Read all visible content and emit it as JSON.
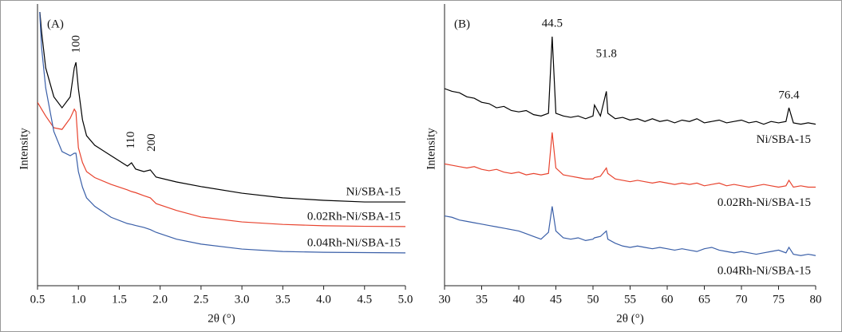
{
  "chart_data": [
    {
      "type": "line",
      "panel_label": "(A)",
      "xlabel": "2θ (°)",
      "ylabel": "Intensity",
      "xlim": [
        0.5,
        5.0
      ],
      "xticks": [
        0.5,
        {
          "value": 1,
          "label": "1.0"
        },
        1.5,
        {
          "value": 2,
          "label": "2.0"
        },
        2.5,
        {
          "value": 3,
          "label": "3.0"
        },
        3.5,
        {
          "value": 4,
          "label": "4.0"
        },
        4.5,
        {
          "value": 5,
          "label": "5.0"
        }
      ],
      "ylim": [
        0,
        100
      ],
      "x": [
        0.5,
        0.55,
        0.6,
        0.7,
        0.8,
        0.9,
        0.95,
        0.97,
        1.0,
        1.05,
        1.1,
        1.2,
        1.4,
        1.6,
        1.65,
        1.7,
        1.8,
        1.88,
        1.95,
        2.2,
        2.5,
        3.0,
        3.5,
        4.0,
        4.5,
        5.0
      ],
      "series": [
        {
          "name": "Ni/SBA-15",
          "color": "#000000",
          "values": [
            110,
            92.7,
            79.6,
            69,
            65,
            69,
            79.6,
            81.6,
            72,
            60.6,
            54.8,
            51.3,
            47.5,
            43.7,
            44.9,
            42.6,
            41.7,
            42.3,
            39.7,
            37.9,
            36.2,
            33.8,
            32.1,
            31.2,
            30.6,
            30.6
          ]
        },
        {
          "name": "0.02Rh-Ni/SBA-15",
          "color": "#e8432e",
          "values": [
            67,
            64.5,
            62,
            57.7,
            57.1,
            61.2,
            64.5,
            63.5,
            50.4,
            45,
            41.7,
            39.5,
            37,
            35,
            34.4,
            34,
            32.9,
            32.1,
            30,
            27.5,
            25.1,
            23.3,
            22.4,
            21.9,
            21.7,
            21.6
          ]
        },
        {
          "name": "0.04Rh-Ni/SBA-15",
          "color": "#3a5fa8",
          "values": [
            115,
            86.9,
            72.3,
            56.3,
            49,
            47.5,
            48.4,
            48.4,
            41.7,
            36,
            32.1,
            29,
            25,
            22.7,
            22.4,
            22,
            21.3,
            20.5,
            19.5,
            17,
            15.2,
            13.4,
            12.5,
            12.2,
            12.1,
            12
          ]
        }
      ],
      "annotation_rotation": -90,
      "annotations": [
        {
          "text": "100",
          "x": 0.98,
          "y": 85
        },
        {
          "text": "110",
          "x": 1.65,
          "y": 50
        },
        {
          "text": "200",
          "x": 1.9,
          "y": 49
        }
      ]
    },
    {
      "type": "line",
      "panel_label": "(B)",
      "xlabel": "2θ (°)",
      "ylabel": "Intensity",
      "xlim": [
        30,
        80
      ],
      "xticks": [
        30,
        35,
        40,
        45,
        50,
        55,
        60,
        65,
        70,
        75,
        80
      ],
      "ylim": [
        0,
        100
      ],
      "x": [
        30,
        31,
        32,
        33,
        34,
        35,
        36,
        37,
        38,
        39,
        40,
        41,
        42,
        43,
        44,
        44.5,
        45,
        46,
        47,
        48,
        49,
        50,
        50.2,
        51,
        51.8,
        52,
        53,
        54,
        55,
        56,
        57,
        58,
        59,
        60,
        61,
        62,
        63,
        64,
        65,
        66,
        67,
        68,
        69,
        70,
        71,
        72,
        73,
        74,
        75,
        76,
        76.4,
        77,
        78,
        79,
        80
      ],
      "series": [
        {
          "name": "Ni/SBA-15",
          "color": "#000000",
          "values": [
            72,
            71,
            70.5,
            69,
            68.5,
            67,
            66.5,
            65,
            65.5,
            64,
            63.5,
            64,
            62.5,
            62,
            63,
            91,
            63,
            62,
            61.5,
            62,
            61,
            62,
            66,
            62,
            71,
            63,
            61,
            61.5,
            60.5,
            61,
            60,
            61,
            60,
            60.5,
            59.5,
            60.5,
            60,
            61,
            59.5,
            60,
            60.5,
            59.5,
            60,
            60.5,
            59.5,
            60,
            59,
            60,
            59.5,
            60,
            65,
            59.5,
            59,
            59.5,
            59
          ]
        },
        {
          "name": "0.02Rh-Ni/SBA-15",
          "color": "#e8432e",
          "values": [
            44.5,
            44,
            43.5,
            43,
            43.5,
            42.5,
            42,
            42.5,
            41.5,
            41,
            41.5,
            40.5,
            41,
            40.5,
            41,
            56,
            43,
            40.5,
            40,
            39.5,
            39,
            39,
            39.5,
            40,
            43,
            41,
            39,
            38.5,
            38,
            38.5,
            38,
            37.5,
            38,
            37.5,
            37,
            37.5,
            37,
            37.5,
            36.5,
            37,
            37.5,
            36.5,
            37,
            36.5,
            36,
            36.5,
            37,
            36.5,
            36,
            36.5,
            38.5,
            36,
            36.5,
            36,
            36
          ]
        },
        {
          "name": "0.04Rh-Ni/SBA-15",
          "color": "#3a5fa8",
          "values": [
            25.5,
            25,
            24,
            23.5,
            23,
            22.5,
            22,
            21.5,
            21,
            20.5,
            20,
            19,
            18,
            17,
            19.5,
            29,
            20,
            17.5,
            17,
            17.5,
            16.5,
            17,
            17.5,
            18,
            20,
            17,
            15.5,
            14.5,
            14,
            14.5,
            14,
            13.5,
            14,
            13.5,
            13,
            13.5,
            13,
            12.5,
            13.5,
            14,
            13,
            12.5,
            12,
            12.5,
            12,
            11.5,
            12,
            12.5,
            13,
            12,
            14,
            11.5,
            11,
            11.5,
            11
          ]
        }
      ],
      "annotation_rotation": 0,
      "annotations": [
        {
          "text": "44.5",
          "x": 44.5,
          "y": 95.6
        },
        {
          "text": "51.8",
          "x": 51.8,
          "y": 84.5
        },
        {
          "text": "76.4",
          "x": 76.4,
          "y": 69.4
        }
      ]
    }
  ]
}
